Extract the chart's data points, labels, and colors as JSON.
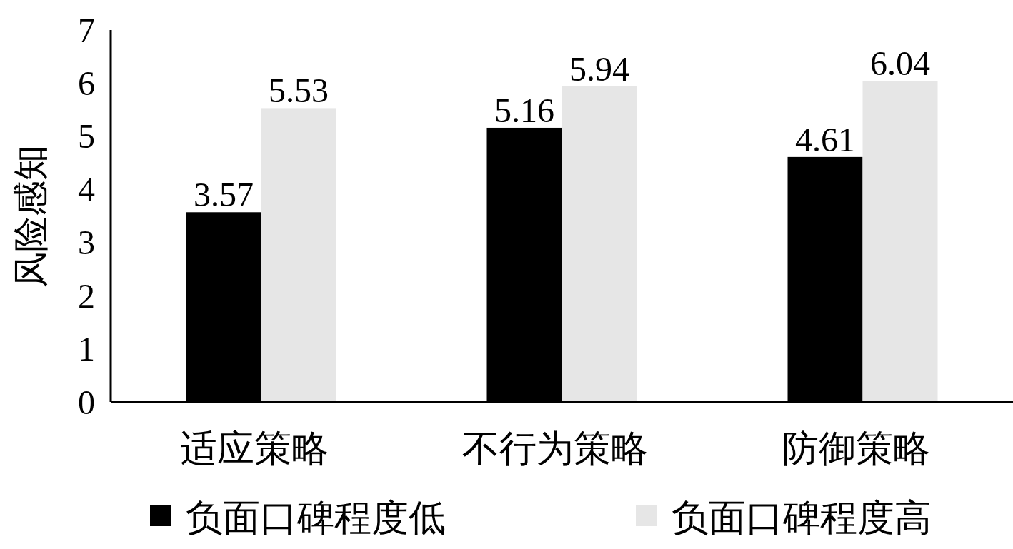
{
  "chart_data": {
    "type": "bar",
    "ylabel": "风险感知",
    "categories": [
      "适应策略",
      "不行为策略",
      "防御策略"
    ],
    "series": [
      {
        "name": "负面口碑程度低",
        "color": "#000000",
        "values": [
          3.57,
          5.16,
          4.61
        ]
      },
      {
        "name": "负面口碑程度高",
        "color": "#e6e6e6",
        "values": [
          5.53,
          5.94,
          6.04
        ]
      }
    ],
    "ylim": [
      0,
      7
    ],
    "yticks": [
      0,
      1,
      2,
      3,
      4,
      5,
      6,
      7
    ],
    "data_labels": true,
    "legend": "bottom"
  }
}
